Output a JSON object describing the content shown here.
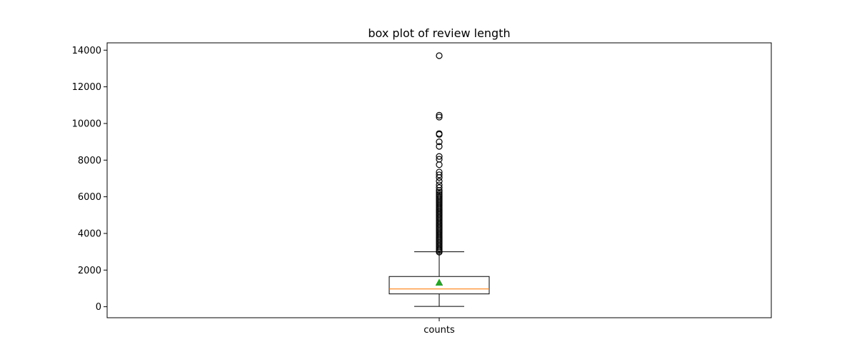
{
  "chart_data": {
    "type": "box",
    "title": "box plot of review length",
    "xlabel": "",
    "ylabel": "",
    "ylim": [
      -600,
      14400
    ],
    "yticks": [
      0,
      2000,
      4000,
      6000,
      8000,
      10000,
      12000,
      14000
    ],
    "yticklabels": [
      "0",
      "2000",
      "4000",
      "6000",
      "8000",
      "10000",
      "12000",
      "14000"
    ],
    "categories": [
      "counts"
    ],
    "grid": false,
    "box": {
      "category": "counts",
      "whisker_low": 20,
      "q1": 700,
      "median": 970,
      "q3": 1650,
      "whisker_high": 3000,
      "mean": 1320,
      "outliers": [
        2980,
        3050,
        3120,
        3200,
        3280,
        3360,
        3440,
        3520,
        3600,
        3680,
        3760,
        3840,
        3920,
        4000,
        4080,
        4160,
        4240,
        4320,
        4400,
        4480,
        4560,
        4640,
        4720,
        4800,
        4880,
        4960,
        5040,
        5120,
        5200,
        5280,
        5360,
        5440,
        5520,
        5600,
        5680,
        5760,
        5840,
        5920,
        6000,
        6080,
        6150,
        6250,
        6350,
        6500,
        6650,
        6850,
        7050,
        7200,
        7350,
        7750,
        8050,
        8200,
        8750,
        9000,
        9400,
        9450,
        10350,
        10450,
        13700
      ]
    },
    "colors": {
      "box": "#000000",
      "median": "#ff7f0e",
      "mean": "#2ca02c",
      "outlier": "#000000"
    }
  }
}
